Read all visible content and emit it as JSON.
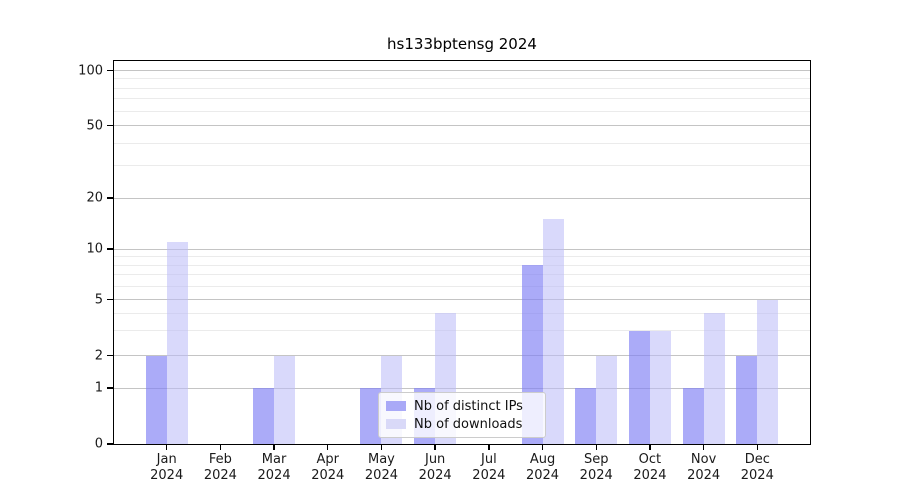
{
  "title": "hs133bptensg 2024",
  "chart_data": {
    "type": "bar",
    "title": "hs133bptensg 2024",
    "categories": [
      "Jan",
      "Feb",
      "Mar",
      "Apr",
      "May",
      "Jun",
      "Jul",
      "Aug",
      "Sep",
      "Oct",
      "Nov",
      "Dec"
    ],
    "year_label": "2024",
    "series": [
      {
        "name": "Nb of distinct IPs",
        "values": [
          2,
          0,
          1,
          0,
          1,
          1,
          0,
          8,
          1,
          3,
          1,
          2
        ],
        "color": "#a9a9f7",
        "fill_rgba": "rgba(127,127,245,0.66)"
      },
      {
        "name": "Nb of downloads",
        "values": [
          11,
          0,
          2,
          0,
          2,
          4,
          0,
          15,
          2,
          3,
          4,
          5
        ],
        "color": "#d9d9f8",
        "fill_rgba": "rgba(188,188,247,0.56)"
      }
    ],
    "yscale": "log-like (linear 0-1, logarithmic above)",
    "ytick_values": [
      0,
      1,
      2,
      5,
      10,
      20,
      50,
      100
    ],
    "ytick_labels": [
      "0",
      "1",
      "2",
      "5",
      "10",
      "20",
      "50",
      "100"
    ],
    "minor_gridline_values": [
      3,
      4,
      6,
      7,
      8,
      9,
      30,
      40,
      60,
      70,
      80,
      90
    ],
    "ylim": [
      0,
      115
    ],
    "grid": true,
    "legend_position": "lower center",
    "colors": {
      "major_grid": "#c4c4c4",
      "minor_grid": "#ebebeb",
      "axis": "#000000",
      "background": "#ffffff"
    }
  },
  "legend": {
    "items": [
      {
        "label": "Nb of distinct IPs"
      },
      {
        "label": "Nb of downloads"
      }
    ]
  }
}
